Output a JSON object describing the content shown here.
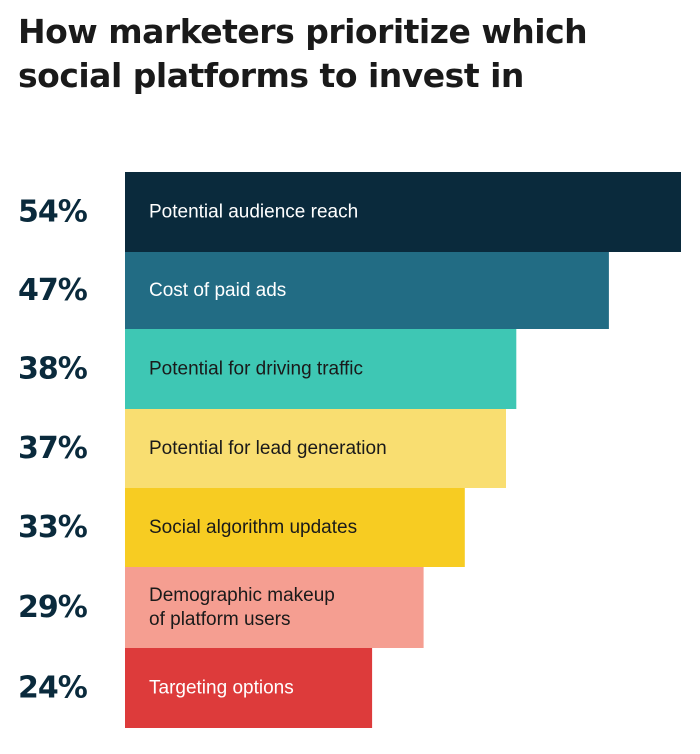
{
  "title_line1": "How marketers prioritize which",
  "title_line2": "social platforms to invest in",
  "chart_data": {
    "type": "bar",
    "orientation": "horizontal",
    "title": "How marketers prioritize which social platforms to invest in",
    "categories": [
      "Potential audience reach",
      "Cost of paid ads",
      "Potential for driving traffic",
      "Potential for lead generation",
      "Social algorithm updates",
      "Demographic makeup of platform users",
      "Targeting options"
    ],
    "category_lines": [
      [
        "Potential audience reach"
      ],
      [
        "Cost of paid ads"
      ],
      [
        "Potential for driving traffic"
      ],
      [
        "Potential for lead generation"
      ],
      [
        "Social algorithm updates"
      ],
      [
        "Demographic makeup",
        "of platform users"
      ],
      [
        "Targeting options"
      ]
    ],
    "values": [
      54,
      47,
      38,
      37,
      33,
      29,
      24
    ],
    "value_labels": [
      "54%",
      "47%",
      "38%",
      "37%",
      "33%",
      "29%",
      "24%"
    ],
    "unit": "%",
    "colors": [
      "#0a2a3c",
      "#226c84",
      "#3ec7b4",
      "#f9de71",
      "#f7cc22",
      "#f59e91",
      "#dd3b3b"
    ],
    "text_colors": [
      "#ffffff",
      "#ffffff",
      "#1a1a1a",
      "#1a1a1a",
      "#1a1a1a",
      "#1a1a1a",
      "#ffffff"
    ],
    "grid": false,
    "legend": "none"
  }
}
